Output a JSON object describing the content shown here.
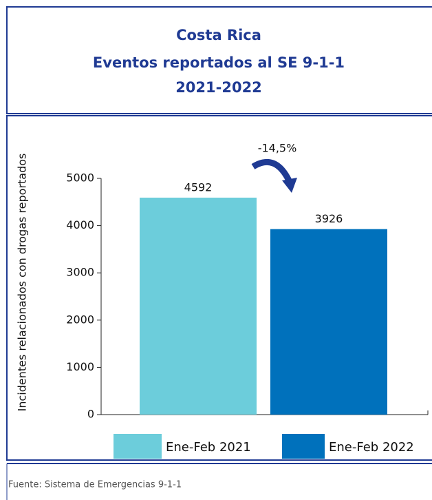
{
  "chart_data": {
    "type": "bar",
    "title_lines": [
      "Costa Rica",
      "Eventos reportados al SE 9-1-1",
      "2021-2022"
    ],
    "ylabel": "Incidentes relacionados con drogas reportados",
    "categories": [
      "Ene-Feb 2021",
      "Ene-Feb 2022"
    ],
    "values": [
      4592,
      3926
    ],
    "colors": [
      "#6ccddb",
      "#0071bc"
    ],
    "ylim": [
      0,
      5000
    ],
    "yticks": [
      0,
      1000,
      2000,
      3000,
      4000,
      5000
    ],
    "annotation": "-14,5%",
    "source": "Fuente: Sistema de Emergencias 9-1-1"
  }
}
